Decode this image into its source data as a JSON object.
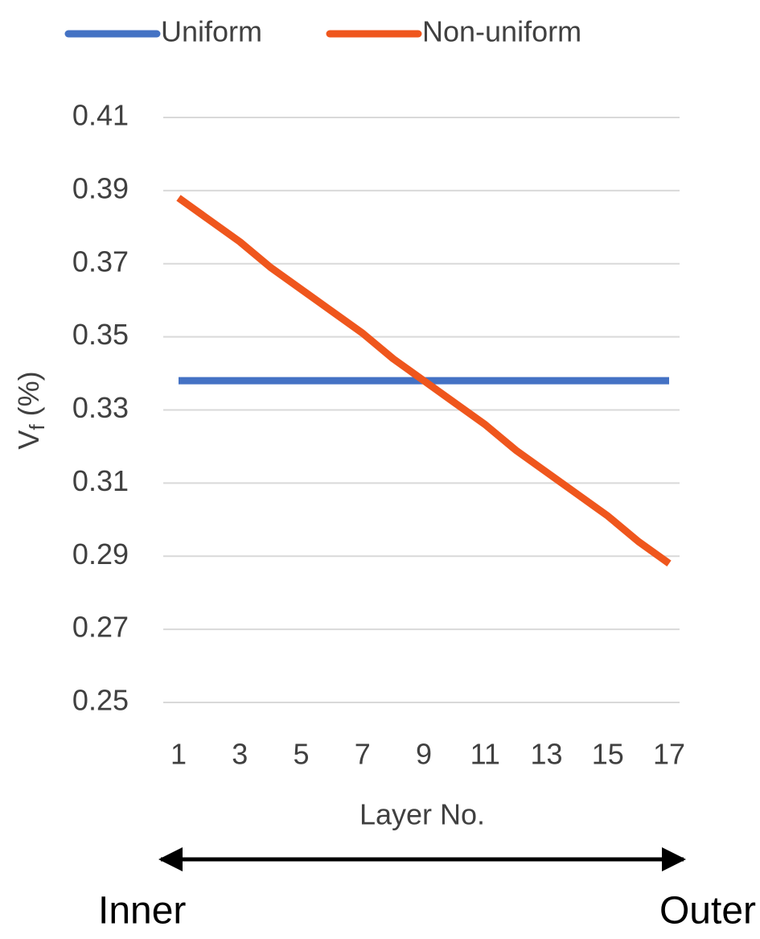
{
  "chart_data": {
    "type": "line",
    "x": [
      1,
      2,
      3,
      4,
      5,
      6,
      7,
      8,
      9,
      10,
      11,
      12,
      13,
      14,
      15,
      16,
      17
    ],
    "series": [
      {
        "name": "Uniform",
        "color": "#4472c4",
        "values": [
          0.338,
          0.338,
          0.338,
          0.338,
          0.338,
          0.338,
          0.338,
          0.338,
          0.338,
          0.338,
          0.338,
          0.338,
          0.338,
          0.338,
          0.338,
          0.338,
          0.338
        ]
      },
      {
        "name": "Non-uniform",
        "color": "#ef561d",
        "values": [
          0.388,
          0.382,
          0.376,
          0.369,
          0.363,
          0.357,
          0.351,
          0.344,
          0.338,
          0.332,
          0.326,
          0.319,
          0.313,
          0.307,
          0.301,
          0.294,
          0.288
        ]
      }
    ],
    "xlim": [
      1,
      17
    ],
    "xticks": [
      1,
      3,
      5,
      7,
      9,
      11,
      13,
      15,
      17
    ],
    "ylim": [
      0.25,
      0.41
    ],
    "yticks": [
      0.25,
      0.27,
      0.29,
      0.31,
      0.33,
      0.35,
      0.37,
      0.39,
      0.41
    ],
    "x_label": "Layer No.",
    "y_label": [
      "V",
      "f",
      "(%)"
    ],
    "grid": true,
    "legend": "top",
    "annotations": [
      "Inner",
      "Outer"
    ]
  }
}
